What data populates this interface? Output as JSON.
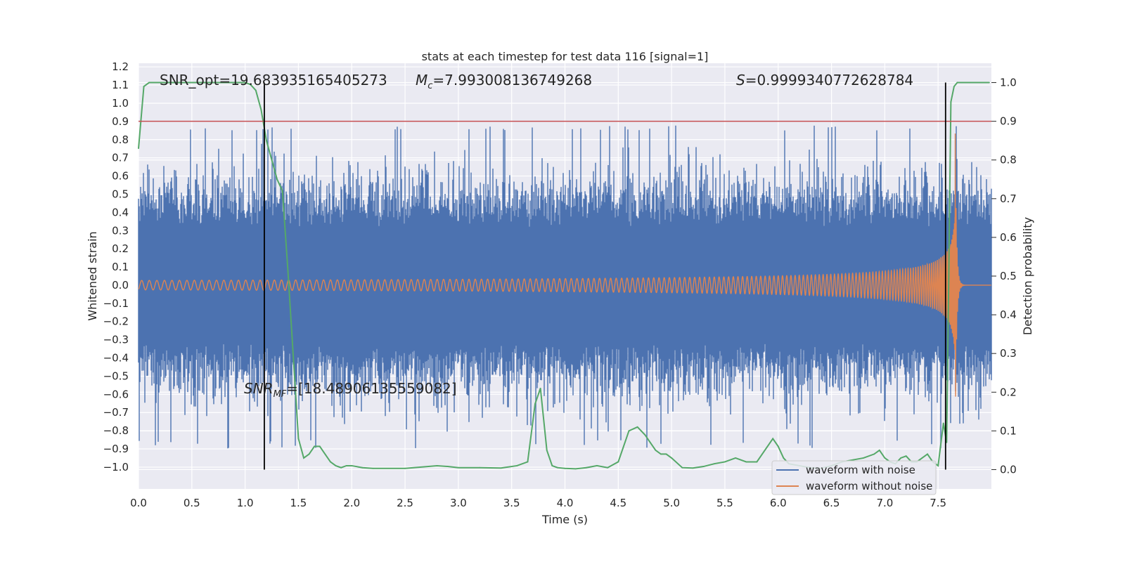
{
  "chart_data": {
    "type": "line",
    "title": "stats at each timestep for test data 116 [signal=1]",
    "xlabel": "Time (s)",
    "ylabel": "Whitened strain",
    "y2label": "Detection probability",
    "xlim": [
      0.0,
      8.0
    ],
    "ylim": [
      -1.12,
      1.22
    ],
    "y2lim": [
      -0.05,
      1.05
    ],
    "x_ticks": [
      "0.0",
      "0.5",
      "1.0",
      "1.5",
      "2.0",
      "2.5",
      "3.0",
      "3.5",
      "4.0",
      "4.5",
      "5.0",
      "5.5",
      "6.0",
      "6.5",
      "7.0",
      "7.5"
    ],
    "y_ticks": [
      "1.2",
      "1.1",
      "1.0",
      "0.9",
      "0.8",
      "0.7",
      "0.6",
      "0.5",
      "0.4",
      "0.3",
      "0.2",
      "0.1",
      "0.0",
      "−0.1",
      "−0.2",
      "−0.3",
      "−0.4",
      "−0.5",
      "−0.6",
      "−0.7",
      "−0.8",
      "−0.9",
      "−1.0"
    ],
    "y2_ticks": [
      "1.0",
      "0.9",
      "0.8",
      "0.7",
      "0.6",
      "0.5",
      "0.4",
      "0.3",
      "0.2",
      "0.1",
      "0.0"
    ],
    "grid": true,
    "legend_position": "lower-right",
    "annotations": {
      "snr_opt": "SNR_opt=19.683935165405273",
      "mc_symbol": "M",
      "mc_sub": "c",
      "mc_value": "=7.993008136749268",
      "s_symbol": "S",
      "s_value": "=0.9999340772628784",
      "snr_mf_symbol": "SNR",
      "snr_mf_sub": "MF",
      "snr_mf_value": "=[18.48906135559082]"
    },
    "threshold": {
      "y2": 0.9,
      "color": "#c44e52"
    },
    "vertical_lines": [
      1.18,
      7.57
    ],
    "series": [
      {
        "name": "waveform with noise",
        "color": "#4c72b0",
        "axis": "left",
        "noise_amplitude": 0.9
      },
      {
        "name": "waveform without noise",
        "color": "#dd8452",
        "axis": "left",
        "merger_time": 7.66
      },
      {
        "color": "#55a868",
        "axis": "right",
        "x": [
          0.0,
          0.05,
          0.1,
          0.2,
          0.3,
          0.5,
          0.7,
          0.9,
          1.0,
          1.05,
          1.1,
          1.15,
          1.2,
          1.25,
          1.3,
          1.35,
          1.4,
          1.45,
          1.5,
          1.55,
          1.6,
          1.65,
          1.7,
          1.75,
          1.8,
          1.85,
          1.9,
          1.95,
          2.0,
          2.1,
          2.2,
          2.5,
          2.8,
          2.9,
          3.0,
          3.2,
          3.4,
          3.55,
          3.65,
          3.72,
          3.77,
          3.83,
          3.88,
          3.93,
          4.0,
          4.1,
          4.2,
          4.3,
          4.4,
          4.5,
          4.6,
          4.68,
          4.75,
          4.8,
          4.85,
          4.9,
          4.95,
          5.0,
          5.1,
          5.2,
          5.3,
          5.4,
          5.5,
          5.6,
          5.7,
          5.8,
          5.85,
          5.9,
          5.95,
          6.0,
          6.05,
          6.1,
          6.2,
          6.3,
          6.4,
          6.5,
          6.6,
          6.8,
          6.9,
          6.95,
          7.0,
          7.05,
          7.1,
          7.15,
          7.2,
          7.25,
          7.3,
          7.35,
          7.4,
          7.45,
          7.5,
          7.55,
          7.58,
          7.6,
          7.62,
          7.65,
          7.68,
          7.72,
          7.8,
          7.98
        ],
        "y": [
          0.83,
          0.99,
          1.0,
          1.0,
          1.0,
          1.0,
          1.0,
          1.0,
          1.0,
          0.995,
          0.98,
          0.93,
          0.85,
          0.8,
          0.75,
          0.72,
          0.52,
          0.3,
          0.08,
          0.03,
          0.04,
          0.06,
          0.06,
          0.04,
          0.02,
          0.01,
          0.005,
          0.01,
          0.01,
          0.005,
          0.003,
          0.003,
          0.01,
          0.008,
          0.005,
          0.005,
          0.004,
          0.01,
          0.02,
          0.17,
          0.21,
          0.05,
          0.01,
          0.005,
          0.003,
          0.002,
          0.005,
          0.01,
          0.005,
          0.02,
          0.1,
          0.11,
          0.09,
          0.07,
          0.05,
          0.04,
          0.04,
          0.03,
          0.005,
          0.004,
          0.008,
          0.015,
          0.02,
          0.03,
          0.02,
          0.02,
          0.04,
          0.06,
          0.08,
          0.06,
          0.03,
          0.015,
          0.01,
          0.005,
          0.003,
          0.01,
          0.02,
          0.03,
          0.04,
          0.05,
          0.03,
          0.02,
          0.015,
          0.03,
          0.035,
          0.02,
          0.02,
          0.03,
          0.04,
          0.02,
          0.01,
          0.12,
          0.07,
          0.5,
          0.95,
          0.99,
          1.0,
          1.0,
          1.0,
          1.0
        ]
      }
    ]
  }
}
